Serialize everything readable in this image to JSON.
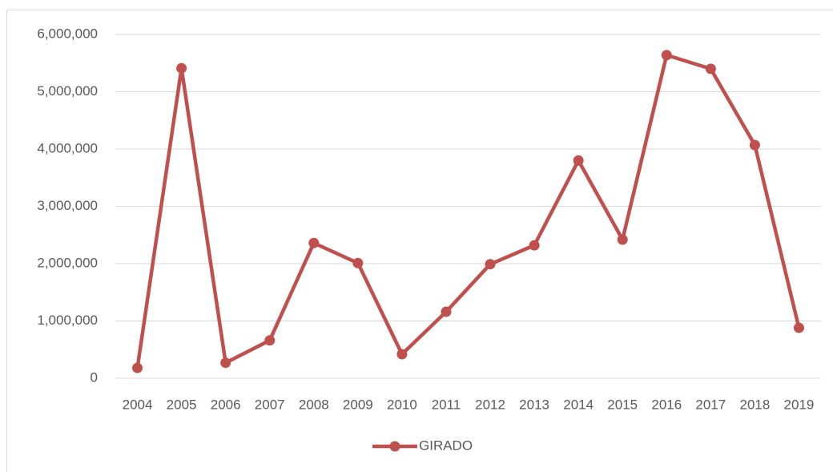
{
  "chart_data": {
    "type": "line",
    "categories": [
      "2004",
      "2005",
      "2006",
      "2007",
      "2008",
      "2009",
      "2010",
      "2011",
      "2012",
      "2013",
      "2014",
      "2015",
      "2016",
      "2017",
      "2018",
      "2019"
    ],
    "series": [
      {
        "name": "GIRADO",
        "color": "#c0504d",
        "values": [
          180000,
          5410000,
          270000,
          660000,
          2360000,
          2010000,
          420000,
          1160000,
          1990000,
          2320000,
          3800000,
          2420000,
          5640000,
          5400000,
          4070000,
          880000
        ]
      }
    ],
    "ylim": [
      0,
      6000000
    ],
    "yticks": [
      0,
      {
        "value": 1000000,
        "label": "1,000,000"
      },
      {
        "value": 2000000,
        "label": "2,000,000"
      },
      {
        "value": 3000000,
        "label": "3,000,000"
      },
      {
        "value": 4000000,
        "label": "4,000,000"
      },
      {
        "value": 5000000,
        "label": "5,000,000"
      },
      {
        "value": 6000000,
        "label": "6,000,000"
      }
    ],
    "grid": true,
    "legend": "bottom"
  }
}
